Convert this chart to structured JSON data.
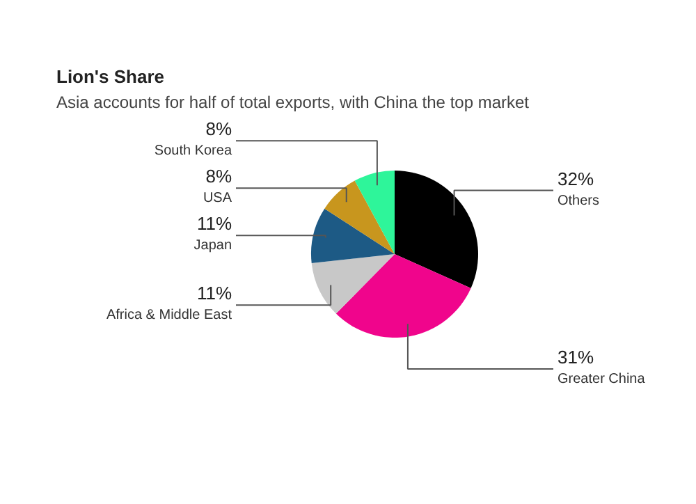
{
  "chart_data": {
    "type": "pie",
    "title": "Lion's Share",
    "subtitle": "Asia accounts for half of total exports, with China the top market",
    "categories": [
      "Others",
      "Greater China",
      "Africa & Middle East",
      "Japan",
      "USA",
      "South Korea"
    ],
    "values": [
      32,
      31,
      11,
      11,
      8,
      8
    ],
    "value_labels": [
      "32%",
      "31%",
      "11%",
      "11%",
      "8%",
      "8%"
    ],
    "colors": [
      "#000000",
      "#f0058c",
      "#c8c8c8",
      "#1d5a85",
      "#c8961e",
      "#2ef59a"
    ]
  }
}
